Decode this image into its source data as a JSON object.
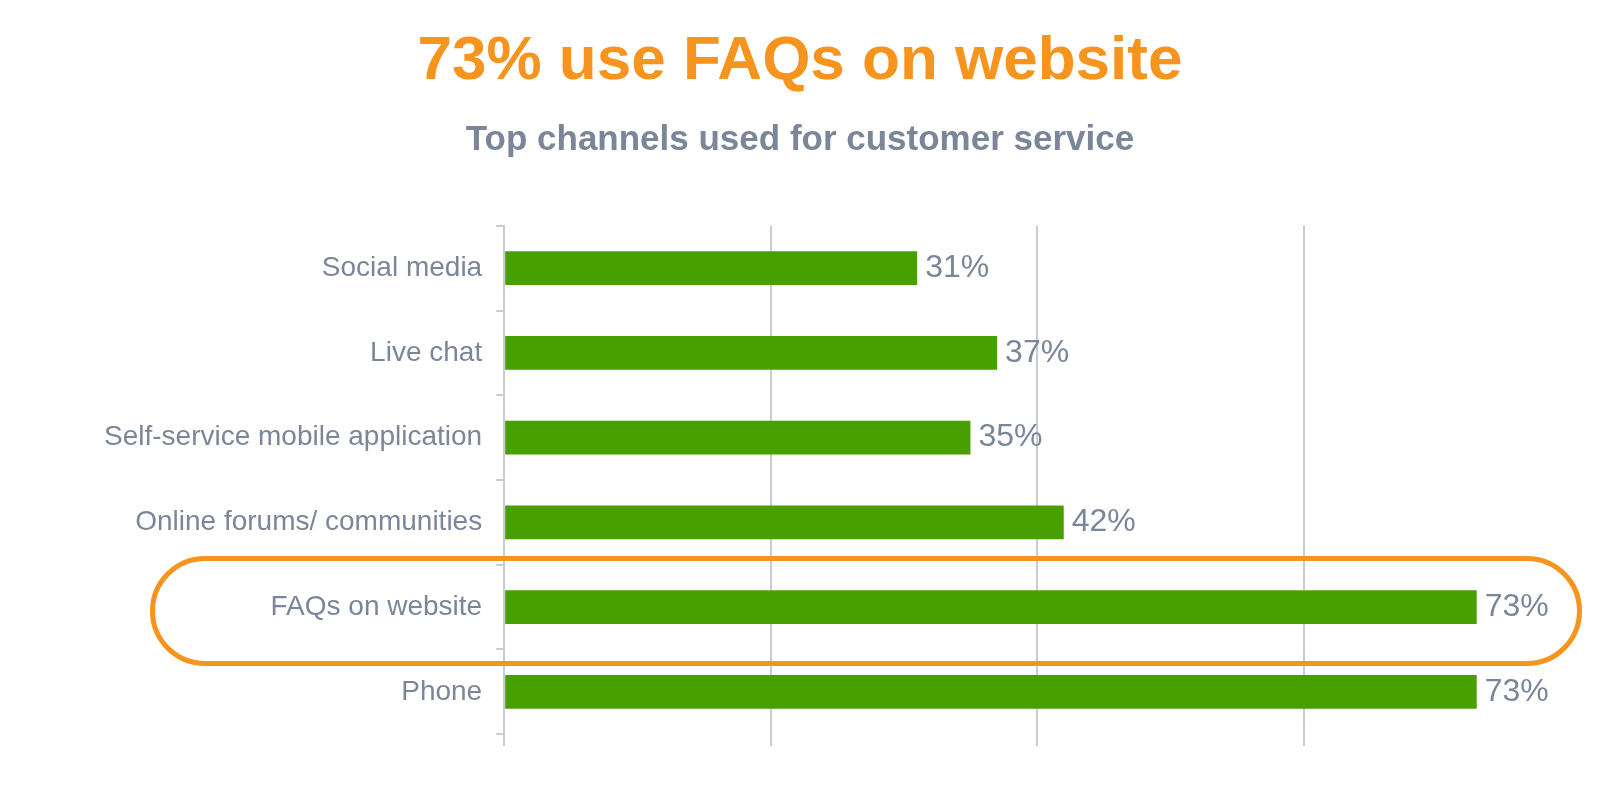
{
  "chart_data": {
    "type": "bar",
    "orientation": "horizontal",
    "title": "73% use FAQs on website",
    "subtitle": "Top channels used for customer service",
    "categories": [
      "Social media",
      "Live chat",
      "Self-service mobile application",
      "Online forums/ communities",
      "FAQs on website",
      "Phone"
    ],
    "values": [
      31,
      37,
      35,
      42,
      73,
      73
    ],
    "value_labels": [
      "31%",
      "37%",
      "35%",
      "42%",
      "73%",
      "73%"
    ],
    "color": "#48a000",
    "xticks": [
      {
        "value": 0,
        "label": null
      },
      {
        "value": 20,
        "label": null
      },
      {
        "value": 40,
        "label": null
      },
      {
        "value": 60,
        "label": null
      }
    ],
    "grid": "x",
    "legend": false,
    "tick_labels": "y"
  }
}
